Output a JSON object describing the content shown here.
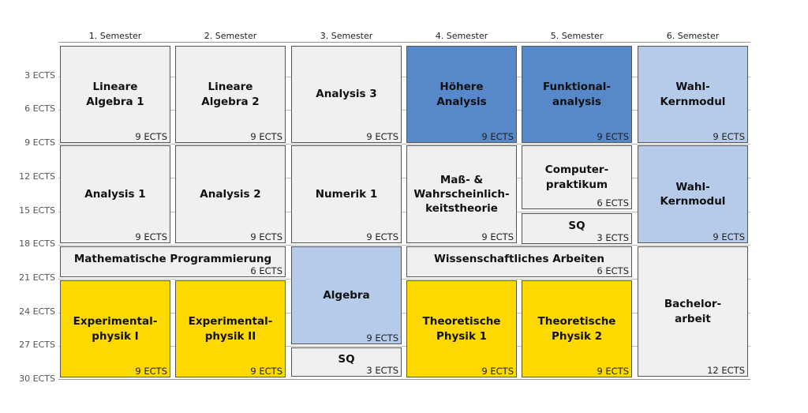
{
  "semesters": [
    "1. Semester",
    "2. Semester",
    "3. Semester",
    "4. Semester",
    "5. Semester",
    "6. Semester"
  ],
  "y_axis": {
    "labels": [
      "3 ECTS",
      "6 ECTS",
      "9 ECTS",
      "12 ECTS",
      "15 ECTS",
      "18 ECTS",
      "21 ECTS",
      "24 ECTS",
      "27 ECTS",
      "30 ECTS"
    ],
    "values": [
      3,
      6,
      9,
      12,
      15,
      18,
      21,
      24,
      27,
      30
    ],
    "max": 30
  },
  "colors": {
    "grey": "#eff1ee",
    "blue": "#5788c9",
    "lightblue": "#b5cbe9",
    "yellow": "#fdd900"
  },
  "modules": [
    {
      "title": "Lineare\nAlgebra 1",
      "ects_label": "9 ECTS",
      "semester": 1,
      "span": 1,
      "start_ects": 0,
      "ects": 9,
      "color": "grey"
    },
    {
      "title": "Lineare\nAlgebra 2",
      "ects_label": "9 ECTS",
      "semester": 2,
      "span": 1,
      "start_ects": 0,
      "ects": 9,
      "color": "grey"
    },
    {
      "title": "Analysis 3",
      "ects_label": "9 ECTS",
      "semester": 3,
      "span": 1,
      "start_ects": 0,
      "ects": 9,
      "color": "grey"
    },
    {
      "title": "Höhere\nAnalysis",
      "ects_label": "9 ECTS",
      "semester": 4,
      "span": 1,
      "start_ects": 0,
      "ects": 9,
      "color": "blue"
    },
    {
      "title": "Funktional-\nanalysis",
      "ects_label": "9 ECTS",
      "semester": 5,
      "span": 1,
      "start_ects": 0,
      "ects": 9,
      "color": "blue"
    },
    {
      "title": "Wahl-Kernmodul",
      "ects_label": "9 ECTS",
      "semester": 6,
      "span": 1,
      "start_ects": 0,
      "ects": 9,
      "color": "lightblue"
    },
    {
      "title": "Analysis 1",
      "ects_label": "9 ECTS",
      "semester": 1,
      "span": 1,
      "start_ects": 9,
      "ects": 9,
      "color": "grey"
    },
    {
      "title": "Analysis 2",
      "ects_label": "9 ECTS",
      "semester": 2,
      "span": 1,
      "start_ects": 9,
      "ects": 9,
      "color": "grey"
    },
    {
      "title": "Numerik 1",
      "ects_label": "9 ECTS",
      "semester": 3,
      "span": 1,
      "start_ects": 9,
      "ects": 9,
      "color": "grey"
    },
    {
      "title": "Maß- &\nWahrscheinlich-\nkeitstheorie",
      "ects_label": "9 ECTS",
      "semester": 4,
      "span": 1,
      "start_ects": 9,
      "ects": 9,
      "color": "grey"
    },
    {
      "title": "Computer-\npraktikum",
      "ects_label": "6 ECTS",
      "semester": 5,
      "span": 1,
      "start_ects": 9,
      "ects": 6,
      "color": "grey"
    },
    {
      "title": "SQ",
      "ects_label": "3 ECTS",
      "semester": 5,
      "span": 1,
      "start_ects": 15,
      "ects": 3,
      "color": "grey"
    },
    {
      "title": "Wahl-Kernmodul",
      "ects_label": "9 ECTS",
      "semester": 6,
      "span": 1,
      "start_ects": 9,
      "ects": 9,
      "color": "lightblue"
    },
    {
      "title": "Mathematische Programmierung",
      "ects_label": "6 ECTS",
      "semester": 1,
      "span": 2,
      "start_ects": 18,
      "ects": 3,
      "color": "grey"
    },
    {
      "title": "Algebra",
      "ects_label": "9 ECTS",
      "semester": 3,
      "span": 1,
      "start_ects": 18,
      "ects": 9,
      "color": "lightblue"
    },
    {
      "title": "Wissenschaftliches Arbeiten",
      "ects_label": "6 ECTS",
      "semester": 4,
      "span": 2,
      "start_ects": 18,
      "ects": 3,
      "color": "grey"
    },
    {
      "title": "Bachelor-\narbeit",
      "ects_label": "12 ECTS",
      "semester": 6,
      "span": 1,
      "start_ects": 18,
      "ects": 12,
      "color": "grey"
    },
    {
      "title": "Experimental-\nphysik I",
      "ects_label": "9 ECTS",
      "semester": 1,
      "span": 1,
      "start_ects": 21,
      "ects": 9,
      "color": "yellow"
    },
    {
      "title": "Experimental-\nphysik II",
      "ects_label": "9 ECTS",
      "semester": 2,
      "span": 1,
      "start_ects": 21,
      "ects": 9,
      "color": "yellow"
    },
    {
      "title": "SQ",
      "ects_label": "3 ECTS",
      "semester": 3,
      "span": 1,
      "start_ects": 27,
      "ects": 3,
      "color": "grey"
    },
    {
      "title": "Theoretische\nPhysik 1",
      "ects_label": "9 ECTS",
      "semester": 4,
      "span": 1,
      "start_ects": 21,
      "ects": 9,
      "color": "yellow"
    },
    {
      "title": "Theoretische\nPhysik 2",
      "ects_label": "9 ECTS",
      "semester": 5,
      "span": 1,
      "start_ects": 21,
      "ects": 9,
      "color": "yellow"
    }
  ]
}
